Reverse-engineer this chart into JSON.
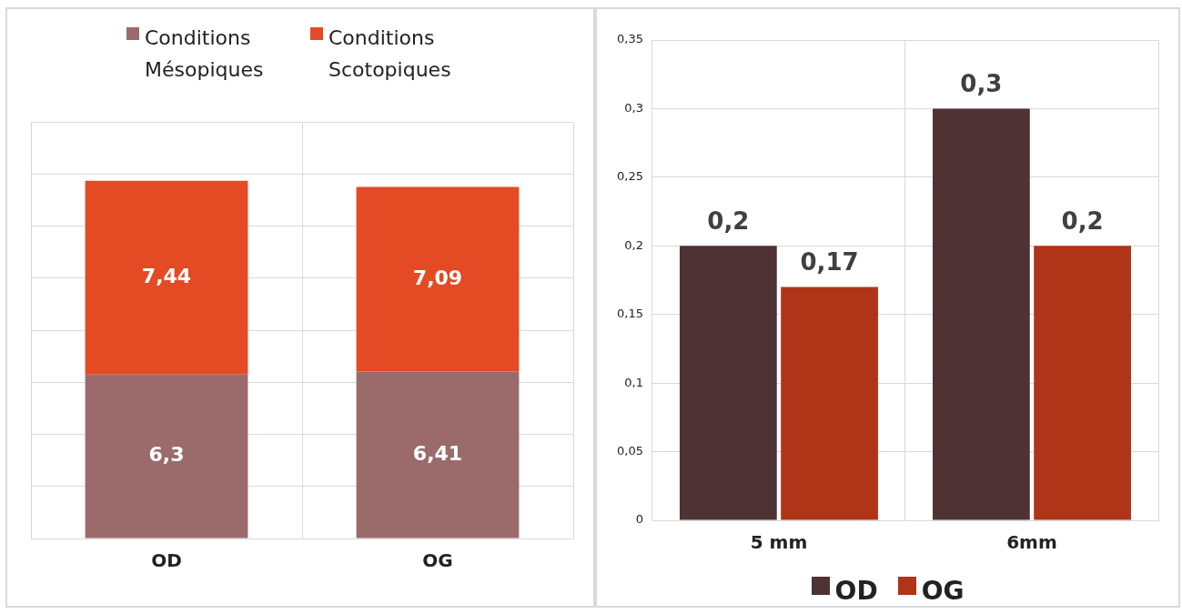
{
  "chart_data": [
    {
      "type": "bar",
      "stacked": true,
      "categories": [
        "OD",
        "OG"
      ],
      "ylim": [
        0,
        16
      ],
      "yticks": [
        {
          "value": 0,
          "label": null
        },
        {
          "value": 2,
          "label": null
        },
        {
          "value": 4,
          "label": null
        },
        {
          "value": 6,
          "label": null
        },
        {
          "value": 8,
          "label": null
        },
        {
          "value": 10,
          "label": null
        },
        {
          "value": 12,
          "label": null
        },
        {
          "value": 14,
          "label": null
        },
        {
          "value": 16,
          "label": null
        }
      ],
      "tick_labels": "x",
      "grid": true,
      "legend": "top",
      "series": [
        {
          "name": "Conditions Mésopiques",
          "color": "#9b6b6b",
          "values": [
            6.3,
            6.41
          ],
          "value_labels": [
            "6,3",
            "6,41"
          ]
        },
        {
          "name": "Conditions Scotopiques",
          "color": "#e44a23",
          "values": [
            7.44,
            7.09
          ],
          "value_labels": [
            "7,44",
            "7,09"
          ]
        }
      ]
    },
    {
      "type": "bar",
      "categories": [
        "5 mm",
        "6mm"
      ],
      "ylim": [
        0,
        0.35
      ],
      "yticks": [
        0,
        {
          "value": 0.05,
          "label": "0,05"
        },
        {
          "value": 0.1,
          "label": "0,1"
        },
        {
          "value": 0.15,
          "label": "0,15"
        },
        {
          "value": 0.2,
          "label": "0,2"
        },
        {
          "value": 0.25,
          "label": "0,25"
        },
        {
          "value": 0.3,
          "label": "0,3"
        },
        {
          "value": 0.35,
          "label": "0,35"
        }
      ],
      "grid": true,
      "legend": "bottom",
      "series": [
        {
          "name": "OD",
          "color": "#4e3234",
          "values": [
            0.2,
            0.3
          ],
          "value_labels": [
            "0,2",
            "0,3"
          ]
        },
        {
          "name": "OG",
          "color": "#b03417",
          "values": [
            0.17,
            0.2
          ],
          "value_labels": [
            "0,17",
            "0,2"
          ]
        }
      ]
    }
  ]
}
